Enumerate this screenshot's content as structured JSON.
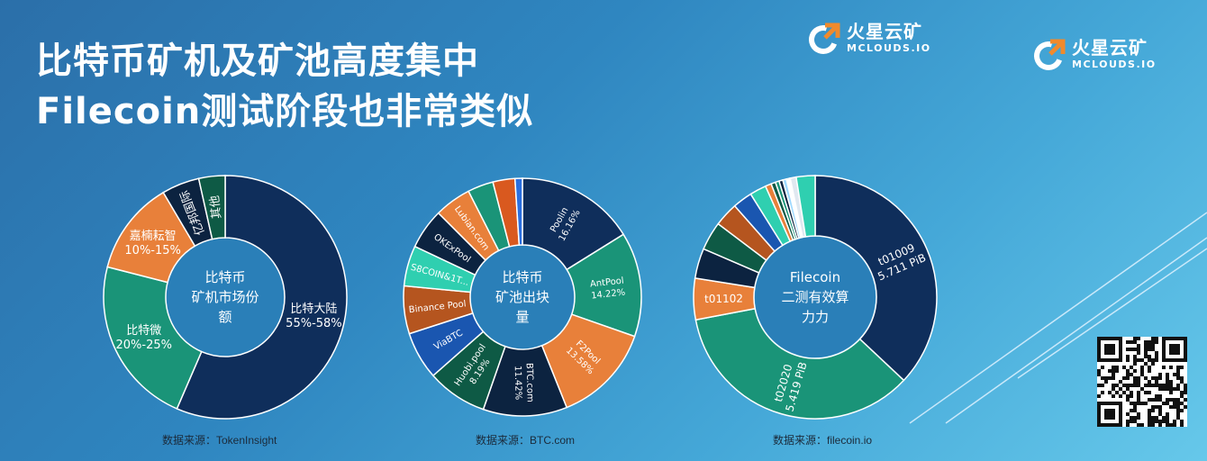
{
  "title_line1": "比特币矿机及矿池高度集中",
  "title_line2": "Filecoin测试阶段也非常类似",
  "brand": {
    "cn": "火星云矿",
    "en": "MCLOUDS.IO"
  },
  "colors": {
    "navy": "#0f2e5b",
    "teal": "#1a9478",
    "orange": "#e8803a",
    "dark": "#0c2340",
    "darkgreen": "#0e5a45",
    "rust": "#b5551f",
    "blue": "#1a56b0",
    "aqua": "#2fcfb0"
  },
  "chart_data": [
    {
      "type": "pie",
      "center_label": [
        "比特币",
        "矿机市场份",
        "额"
      ],
      "source": "数据来源：TokenInsight",
      "slices": [
        {
          "label": "比特大陆",
          "value_label": "55%-58%",
          "value": 56.5,
          "color": "#0f2e5b"
        },
        {
          "label": "比特微",
          "value_label": "20%-25%",
          "value": 22.5,
          "color": "#1a9478"
        },
        {
          "label": "嘉楠耘智",
          "value_label": "10%-15%",
          "value": 12.5,
          "color": "#e8803a"
        },
        {
          "label": "亿邦国际",
          "value_label": "",
          "value": 5,
          "color": "#0c2340"
        },
        {
          "label": "其他",
          "value_label": "",
          "value": 3.5,
          "color": "#0e5a45"
        }
      ]
    },
    {
      "type": "pie",
      "center_label": [
        "比特币",
        "矿池出块",
        "量"
      ],
      "source": "数据来源：BTC.com",
      "slices": [
        {
          "label": "Poolin",
          "value_label": "16.16%",
          "value": 16.16,
          "color": "#0f2e5b"
        },
        {
          "label": "AntPool",
          "value_label": "14.22%",
          "value": 14.22,
          "color": "#1a9478"
        },
        {
          "label": "F2Pool",
          "value_label": "13.58%",
          "value": 13.58,
          "color": "#e8803a"
        },
        {
          "label": "BTC.com",
          "value_label": "11.42%",
          "value": 11.42,
          "color": "#0c2340"
        },
        {
          "label": "Huobi.pool",
          "value_label": "8.19%",
          "value": 8.19,
          "color": "#0e5a45"
        },
        {
          "label": "ViaBTC",
          "value_label": "",
          "value": 6.5,
          "color": "#1a56b0"
        },
        {
          "label": "Binance Pool",
          "value_label": "",
          "value": 6.5,
          "color": "#b5551f"
        },
        {
          "label": "S8COIN&1T...",
          "value_label": "",
          "value": 5.5,
          "color": "#2fcfb0"
        },
        {
          "label": "OKExPool",
          "value_label": "",
          "value": 5.5,
          "color": "#0c2340"
        },
        {
          "label": "Lubian.com",
          "value_label": "",
          "value": 5.0,
          "color": "#e8803a"
        },
        {
          "label": "",
          "value_label": "",
          "value": 3.5,
          "color": "#1a9478"
        },
        {
          "label": "",
          "value_label": "",
          "value": 3.0,
          "color": "#d9591f"
        },
        {
          "label": "",
          "value_label": "",
          "value": 1.0,
          "color": "#2a6fe0"
        }
      ]
    },
    {
      "type": "pie",
      "center_label": [
        "Filecoin",
        "二测有效算",
        "力力"
      ],
      "source": "数据来源：filecoin.io",
      "slices": [
        {
          "label": "t01009",
          "value_label": "5.711 PiB",
          "value": 37.0,
          "color": "#0f2e5b"
        },
        {
          "label": "t02020",
          "value_label": "5.419 PiB",
          "value": 35.0,
          "color": "#1a9478"
        },
        {
          "label": "t01102",
          "value_label": "",
          "value": 5.5,
          "color": "#e8803a"
        },
        {
          "label": "",
          "value_label": "",
          "value": 4.0,
          "color": "#0c2340"
        },
        {
          "label": "",
          "value_label": "",
          "value": 3.8,
          "color": "#0e5a45"
        },
        {
          "label": "",
          "value_label": "",
          "value": 3.2,
          "color": "#b5551f"
        },
        {
          "label": "",
          "value_label": "",
          "value": 2.6,
          "color": "#1a56b0"
        },
        {
          "label": "",
          "value_label": "",
          "value": 2.2,
          "color": "#2fcfb0"
        },
        {
          "label": "",
          "value_label": "",
          "value": 0.8,
          "color": "#e8803a"
        },
        {
          "label": "",
          "value_label": "",
          "value": 0.6,
          "color": "#0e5a45"
        },
        {
          "label": "",
          "value_label": "",
          "value": 0.5,
          "color": "#1a9478"
        },
        {
          "label": "",
          "value_label": "",
          "value": 0.5,
          "color": "#0c2340"
        },
        {
          "label": "",
          "value_label": "",
          "value": 0.5,
          "color": "#9fd9ff"
        },
        {
          "label": "",
          "value_label": "",
          "value": 0.5,
          "color": "#ffffff"
        },
        {
          "label": "",
          "value_label": "",
          "value": 0.8,
          "color": "#e0e8f0"
        },
        {
          "label": "",
          "value_label": "",
          "value": 2.5,
          "color": "#2fcfb0"
        }
      ]
    }
  ]
}
